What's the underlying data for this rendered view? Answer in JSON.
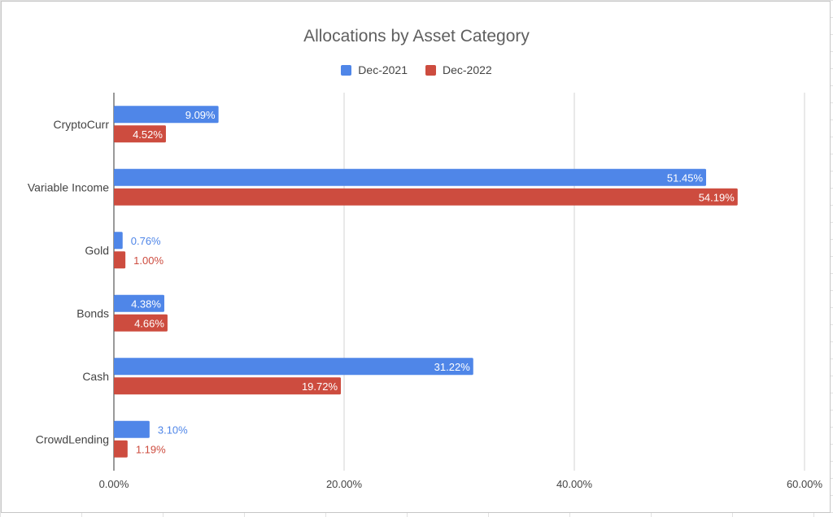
{
  "chart_data": {
    "type": "bar",
    "orientation": "horizontal",
    "title": "Allocations by Asset Category",
    "xlabel": "",
    "ylabel": "",
    "categories": [
      "CryptoCurr",
      "Variable Income",
      "Gold",
      "Bonds",
      "Cash",
      "CrowdLending"
    ],
    "series": [
      {
        "name": "Dec-2021",
        "color": "#4f86e8",
        "values": [
          9.09,
          51.45,
          0.76,
          4.38,
          31.22,
          3.1
        ],
        "labels": [
          "9.09%",
          "51.45%",
          "0.76%",
          "4.38%",
          "31.22%",
          "3.10%"
        ]
      },
      {
        "name": "Dec-2022",
        "color": "#cd4c3f",
        "values": [
          4.52,
          54.19,
          1.0,
          4.66,
          19.72,
          1.19
        ],
        "labels": [
          "4.52%",
          "54.19%",
          "1.00%",
          "4.66%",
          "19.72%",
          "1.19%"
        ]
      }
    ],
    "xlim": [
      0,
      60
    ],
    "xticks": [
      0,
      20,
      40,
      60
    ],
    "xtick_labels": [
      "0.00%",
      "20.00%",
      "40.00%",
      "60.00%"
    ],
    "grid": true,
    "legend_position": "top-center"
  }
}
